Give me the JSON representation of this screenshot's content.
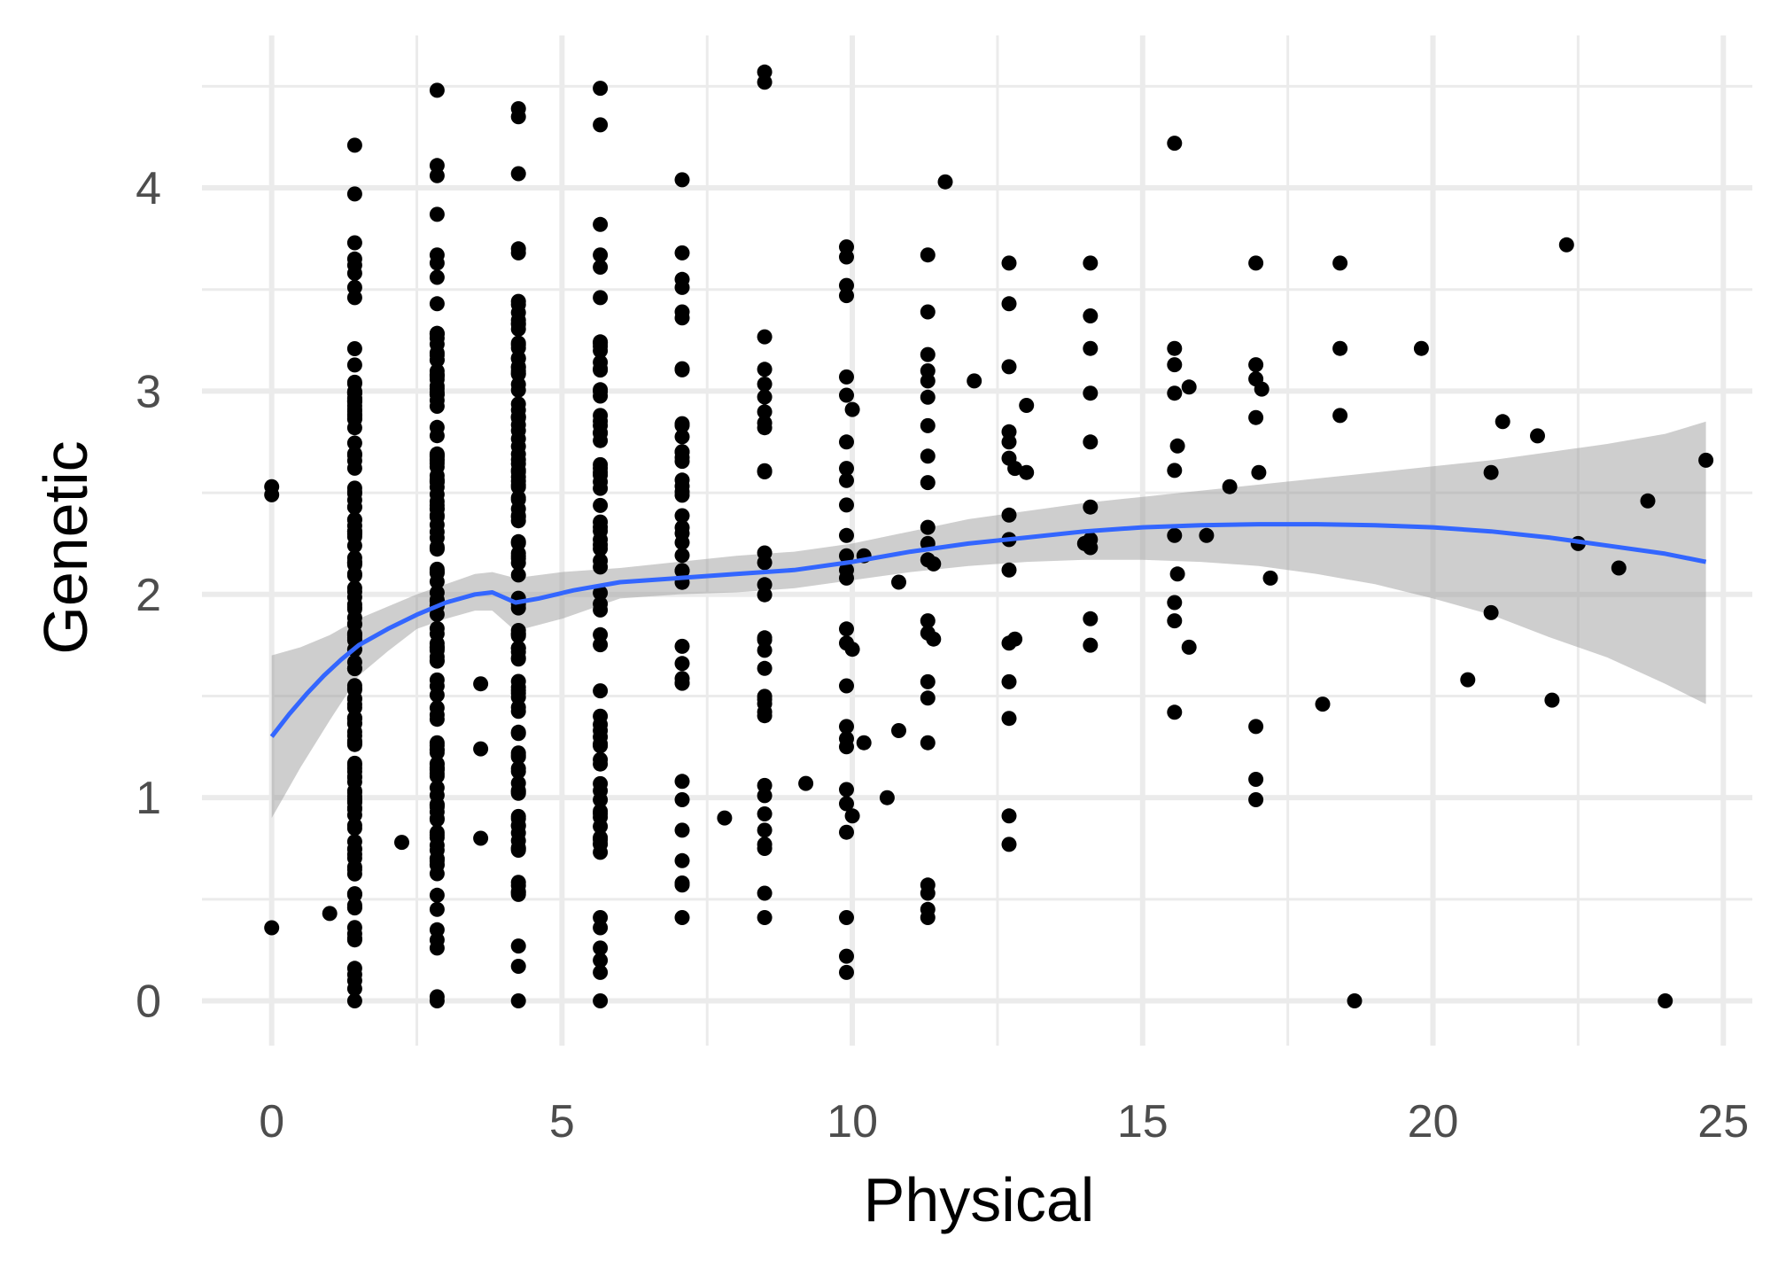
{
  "chart_data": {
    "type": "scatter",
    "xlabel": "Physical",
    "ylabel": "Genetic",
    "xlim": [
      -1.2,
      25.5
    ],
    "ylim": [
      -0.22,
      4.75
    ],
    "x_ticks": [
      0,
      5,
      10,
      15,
      20,
      25
    ],
    "x_minor": [
      2.5,
      7.5,
      12.5,
      17.5,
      22.5
    ],
    "y_ticks": [
      0,
      1,
      2,
      3,
      4
    ],
    "y_minor": [
      0.5,
      1.5,
      2.5,
      3.5,
      4.5
    ],
    "grid": true,
    "colors": {
      "points": "#000000",
      "smooth_line": "#3366FF",
      "ribbon": "#999999",
      "grid": "#EBEBEB"
    },
    "points": [
      [
        0,
        2.53
      ],
      [
        0,
        2.49
      ],
      [
        0,
        0.36
      ],
      [
        1,
        0.43
      ],
      [
        2.24,
        0.78
      ],
      [
        3.6,
        1.56
      ],
      [
        3.6,
        1.24
      ],
      [
        3.6,
        0.8
      ],
      [
        7.8,
        0.9
      ],
      [
        9.2,
        1.07
      ],
      [
        10.2,
        2.19
      ],
      [
        10.2,
        1.27
      ],
      [
        10.6,
        1.0
      ],
      [
        10.8,
        1.33
      ],
      [
        10.8,
        2.06
      ],
      [
        11.6,
        4.03
      ],
      [
        12.1,
        3.05
      ],
      [
        13.0,
        2.93
      ],
      [
        13.0,
        2.6
      ],
      [
        14.0,
        2.25
      ],
      [
        14.1,
        2.27
      ],
      [
        14.1,
        3.63
      ],
      [
        14.1,
        3.37
      ],
      [
        14.1,
        3.21
      ],
      [
        14.1,
        2.99
      ],
      [
        14.1,
        2.75
      ],
      [
        14.1,
        2.43
      ],
      [
        14.1,
        2.23
      ],
      [
        14.1,
        1.88
      ],
      [
        14.1,
        1.75
      ],
      [
        15.55,
        4.22
      ],
      [
        15.55,
        3.21
      ],
      [
        15.55,
        3.13
      ],
      [
        15.55,
        2.99
      ],
      [
        15.55,
        2.61
      ],
      [
        15.55,
        2.29
      ],
      [
        15.55,
        1.96
      ],
      [
        15.55,
        1.87
      ],
      [
        15.55,
        1.42
      ],
      [
        15.6,
        2.73
      ],
      [
        15.6,
        2.1
      ],
      [
        15.8,
        3.02
      ],
      [
        15.8,
        1.74
      ],
      [
        16.1,
        2.29
      ],
      [
        16.5,
        2.53
      ],
      [
        16.95,
        3.63
      ],
      [
        16.95,
        3.13
      ],
      [
        16.95,
        3.06
      ],
      [
        16.95,
        2.87
      ],
      [
        16.95,
        1.35
      ],
      [
        16.95,
        1.09
      ],
      [
        16.95,
        0.99
      ],
      [
        17.0,
        2.6
      ],
      [
        17.05,
        3.01
      ],
      [
        17.2,
        2.08
      ],
      [
        18.1,
        1.46
      ],
      [
        18.4,
        3.63
      ],
      [
        18.4,
        3.21
      ],
      [
        18.4,
        2.88
      ],
      [
        18.65,
        0.0
      ],
      [
        19.8,
        3.21
      ],
      [
        20.6,
        1.58
      ],
      [
        21.0,
        2.6
      ],
      [
        21.0,
        1.91
      ],
      [
        21.2,
        2.85
      ],
      [
        21.8,
        2.78
      ],
      [
        22.05,
        1.48
      ],
      [
        22.3,
        3.72
      ],
      [
        22.5,
        2.25
      ],
      [
        23.2,
        2.13
      ],
      [
        23.7,
        2.46
      ],
      [
        24.0,
        0.0
      ],
      [
        24.7,
        2.66
      ],
      [
        9.9,
        3.71
      ],
      [
        9.9,
        3.66
      ],
      [
        9.9,
        3.52
      ],
      [
        9.9,
        3.47
      ],
      [
        9.9,
        3.07
      ],
      [
        9.9,
        2.98
      ],
      [
        9.9,
        2.75
      ],
      [
        9.9,
        2.62
      ],
      [
        9.9,
        2.56
      ],
      [
        9.9,
        2.44
      ],
      [
        9.9,
        2.29
      ],
      [
        9.9,
        2.19
      ],
      [
        9.9,
        2.12
      ],
      [
        9.9,
        2.08
      ],
      [
        9.9,
        1.83
      ],
      [
        9.9,
        1.76
      ],
      [
        9.9,
        1.55
      ],
      [
        9.9,
        1.35
      ],
      [
        9.9,
        1.29
      ],
      [
        9.9,
        1.25
      ],
      [
        9.9,
        1.04
      ],
      [
        9.9,
        0.97
      ],
      [
        9.9,
        0.83
      ],
      [
        9.9,
        0.41
      ],
      [
        9.9,
        0.22
      ],
      [
        9.9,
        0.14
      ],
      [
        10.0,
        2.91
      ],
      [
        10.0,
        1.73
      ],
      [
        10.0,
        0.91
      ],
      [
        11.3,
        3.67
      ],
      [
        11.3,
        3.39
      ],
      [
        11.3,
        3.18
      ],
      [
        11.3,
        3.1
      ],
      [
        11.3,
        3.05
      ],
      [
        11.3,
        2.97
      ],
      [
        11.3,
        2.83
      ],
      [
        11.3,
        2.68
      ],
      [
        11.3,
        2.55
      ],
      [
        11.3,
        2.33
      ],
      [
        11.3,
        2.25
      ],
      [
        11.3,
        2.17
      ],
      [
        11.3,
        1.87
      ],
      [
        11.3,
        1.81
      ],
      [
        11.3,
        1.57
      ],
      [
        11.3,
        1.49
      ],
      [
        11.3,
        1.27
      ],
      [
        11.3,
        0.57
      ],
      [
        11.3,
        0.53
      ],
      [
        11.3,
        0.45
      ],
      [
        11.3,
        0.41
      ],
      [
        11.4,
        2.15
      ],
      [
        11.4,
        1.78
      ],
      [
        12.7,
        3.63
      ],
      [
        12.7,
        3.43
      ],
      [
        12.7,
        3.12
      ],
      [
        12.7,
        2.8
      ],
      [
        12.7,
        2.75
      ],
      [
        12.7,
        2.67
      ],
      [
        12.7,
        2.39
      ],
      [
        12.7,
        2.27
      ],
      [
        12.7,
        2.12
      ],
      [
        12.7,
        1.76
      ],
      [
        12.7,
        1.57
      ],
      [
        12.7,
        1.39
      ],
      [
        12.7,
        0.91
      ],
      [
        12.7,
        0.77
      ],
      [
        12.8,
        1.78
      ],
      [
        12.8,
        2.62
      ]
    ],
    "smooth_line": [
      [
        0,
        1.3
      ],
      [
        0.3,
        1.41
      ],
      [
        0.6,
        1.51
      ],
      [
        0.9,
        1.6
      ],
      [
        1.2,
        1.68
      ],
      [
        1.5,
        1.75
      ],
      [
        2,
        1.83
      ],
      [
        2.5,
        1.9
      ],
      [
        3,
        1.96
      ],
      [
        3.5,
        2.0
      ],
      [
        3.8,
        2.01
      ],
      [
        4.2,
        1.96
      ],
      [
        4.6,
        1.98
      ],
      [
        5.2,
        2.02
      ],
      [
        6,
        2.06
      ],
      [
        7,
        2.08
      ],
      [
        8,
        2.1
      ],
      [
        9,
        2.12
      ],
      [
        10,
        2.16
      ],
      [
        11,
        2.21
      ],
      [
        12,
        2.25
      ],
      [
        13,
        2.28
      ],
      [
        14,
        2.31
      ],
      [
        15,
        2.33
      ],
      [
        16,
        2.34
      ],
      [
        17,
        2.345
      ],
      [
        18,
        2.345
      ],
      [
        19,
        2.34
      ],
      [
        20,
        2.33
      ],
      [
        21,
        2.31
      ],
      [
        22,
        2.28
      ],
      [
        23,
        2.24
      ],
      [
        24,
        2.2
      ],
      [
        24.7,
        2.16
      ]
    ],
    "ribbon_upper": [
      [
        0,
        1.7
      ],
      [
        0.5,
        1.74
      ],
      [
        1,
        1.8
      ],
      [
        1.5,
        1.88
      ],
      [
        2,
        1.94
      ],
      [
        2.5,
        2.0
      ],
      [
        3,
        2.05
      ],
      [
        3.5,
        2.1
      ],
      [
        3.8,
        2.11
      ],
      [
        4.2,
        2.08
      ],
      [
        5,
        2.11
      ],
      [
        6,
        2.13
      ],
      [
        7,
        2.16
      ],
      [
        8,
        2.19
      ],
      [
        9,
        2.21
      ],
      [
        10,
        2.25
      ],
      [
        11,
        2.31
      ],
      [
        12,
        2.37
      ],
      [
        13,
        2.41
      ],
      [
        14,
        2.45
      ],
      [
        15,
        2.48
      ],
      [
        16,
        2.51
      ],
      [
        17,
        2.54
      ],
      [
        18,
        2.57
      ],
      [
        19,
        2.6
      ],
      [
        20,
        2.63
      ],
      [
        21,
        2.66
      ],
      [
        22,
        2.7
      ],
      [
        23,
        2.74
      ],
      [
        24,
        2.79
      ],
      [
        24.7,
        2.85
      ]
    ],
    "ribbon_lower": [
      [
        0,
        0.9
      ],
      [
        0.5,
        1.15
      ],
      [
        1,
        1.38
      ],
      [
        1.5,
        1.6
      ],
      [
        2,
        1.72
      ],
      [
        2.5,
        1.83
      ],
      [
        3,
        1.88
      ],
      [
        3.5,
        1.92
      ],
      [
        3.8,
        1.92
      ],
      [
        4.2,
        1.82
      ],
      [
        5,
        1.88
      ],
      [
        6,
        1.98
      ],
      [
        7,
        2.0
      ],
      [
        8,
        2.01
      ],
      [
        9,
        2.03
      ],
      [
        10,
        2.07
      ],
      [
        11,
        2.11
      ],
      [
        12,
        2.14
      ],
      [
        13,
        2.16
      ],
      [
        14,
        2.17
      ],
      [
        15,
        2.17
      ],
      [
        16,
        2.16
      ],
      [
        17,
        2.14
      ],
      [
        18,
        2.1
      ],
      [
        19,
        2.05
      ],
      [
        20,
        1.98
      ],
      [
        21,
        1.9
      ],
      [
        22,
        1.79
      ],
      [
        23,
        1.69
      ],
      [
        24,
        1.56
      ],
      [
        24.7,
        1.46
      ]
    ]
  }
}
